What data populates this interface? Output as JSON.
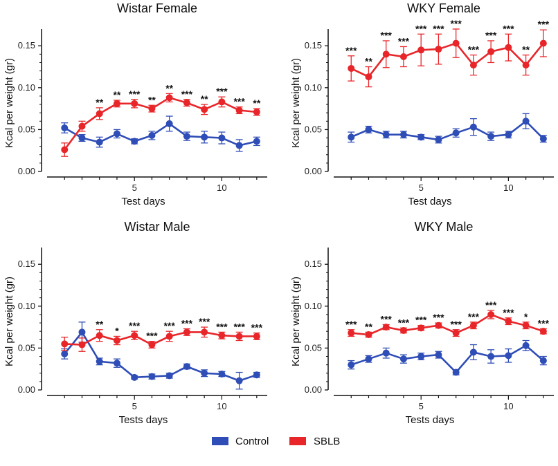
{
  "colors": {
    "control": "#2f4db6",
    "sblb": "#e8262a",
    "axis": "#111111"
  },
  "legend": [
    {
      "label": "Control",
      "color": "#2f4db6"
    },
    {
      "label": "SBLB",
      "color": "#e8262a"
    }
  ],
  "chart_data": [
    {
      "type": "line",
      "title": "Wistar Female",
      "xlabel": "Test days",
      "ylabel": "Kcal per weight (gr)",
      "xlim": [
        0,
        12.6
      ],
      "ylim": [
        0,
        0.17
      ],
      "xticks": [
        5,
        10
      ],
      "yticks": [
        "0.00",
        "0.05",
        "0.10",
        "0.15"
      ],
      "x": [
        1,
        2,
        3,
        4,
        5,
        6,
        7,
        8,
        9,
        10,
        11,
        12
      ],
      "series": [
        {
          "name": "Control",
          "values": [
            0.052,
            0.04,
            0.035,
            0.045,
            0.036,
            0.043,
            0.057,
            0.042,
            0.041,
            0.04,
            0.031,
            0.036
          ],
          "errors": [
            0.006,
            0.004,
            0.006,
            0.005,
            0.003,
            0.005,
            0.009,
            0.005,
            0.007,
            0.007,
            0.007,
            0.005
          ]
        },
        {
          "name": "SBLB",
          "values": [
            0.026,
            0.054,
            0.069,
            0.081,
            0.081,
            0.075,
            0.088,
            0.082,
            0.074,
            0.083,
            0.073,
            0.071
          ],
          "errors": [
            0.008,
            0.006,
            0.007,
            0.004,
            0.005,
            0.004,
            0.005,
            0.004,
            0.006,
            0.006,
            0.004,
            0.004
          ],
          "significance": [
            "",
            "",
            "**",
            "**",
            "***",
            "**",
            "**",
            "***",
            "**",
            "***",
            "***",
            "**"
          ]
        }
      ]
    },
    {
      "type": "line",
      "title": "WKY Female",
      "xlabel": "Test days",
      "ylabel": "Kcal per weight (gr)",
      "xlim": [
        0,
        12.6
      ],
      "ylim": [
        0,
        0.17
      ],
      "xticks": [
        5,
        10
      ],
      "yticks": [
        "0.00",
        "0.05",
        "0.10",
        "0.15"
      ],
      "x": [
        1,
        2,
        3,
        4,
        5,
        6,
        7,
        8,
        9,
        10,
        11,
        12
      ],
      "series": [
        {
          "name": "Control",
          "values": [
            0.041,
            0.05,
            0.044,
            0.044,
            0.041,
            0.038,
            0.046,
            0.053,
            0.042,
            0.044,
            0.06,
            0.039
          ],
          "errors": [
            0.006,
            0.004,
            0.004,
            0.004,
            0.003,
            0.004,
            0.005,
            0.01,
            0.005,
            0.004,
            0.009,
            0.004
          ]
        },
        {
          "name": "SBLB",
          "values": [
            0.123,
            0.113,
            0.14,
            0.137,
            0.145,
            0.146,
            0.153,
            0.127,
            0.143,
            0.148,
            0.127,
            0.153
          ],
          "errors": [
            0.015,
            0.012,
            0.016,
            0.012,
            0.019,
            0.018,
            0.017,
            0.012,
            0.013,
            0.016,
            0.012,
            0.016
          ],
          "significance": [
            "***",
            "**",
            "***",
            "***",
            "***",
            "***",
            "***",
            "***",
            "***",
            "***",
            "**",
            "***"
          ]
        }
      ]
    },
    {
      "type": "line",
      "title": "Wistar Male",
      "xlabel": "Tests days",
      "ylabel": "Kcal per weight (gr)",
      "xlim": [
        0,
        12.6
      ],
      "ylim": [
        0,
        0.17
      ],
      "xticks": [
        5,
        10
      ],
      "yticks": [
        "0.00",
        "0.05",
        "0.10",
        "0.15"
      ],
      "x": [
        1,
        2,
        3,
        4,
        5,
        6,
        7,
        8,
        9,
        10,
        11,
        12
      ],
      "series": [
        {
          "name": "Control",
          "values": [
            0.043,
            0.069,
            0.034,
            0.032,
            0.015,
            0.016,
            0.017,
            0.028,
            0.02,
            0.019,
            0.011,
            0.018
          ],
          "errors": [
            0.006,
            0.012,
            0.004,
            0.005,
            0.002,
            0.003,
            0.003,
            0.003,
            0.004,
            0.003,
            0.01,
            0.003
          ]
        },
        {
          "name": "SBLB",
          "values": [
            0.055,
            0.054,
            0.065,
            0.059,
            0.065,
            0.054,
            0.064,
            0.069,
            0.069,
            0.065,
            0.064,
            0.064
          ],
          "errors": [
            0.008,
            0.008,
            0.007,
            0.005,
            0.005,
            0.004,
            0.006,
            0.004,
            0.006,
            0.004,
            0.005,
            0.004
          ],
          "significance": [
            "",
            "",
            "**",
            "*",
            "***",
            "***",
            "***",
            "***",
            "***",
            "***",
            "***",
            "***"
          ]
        }
      ]
    },
    {
      "type": "line",
      "title": "WKY Male",
      "xlabel": "Tests days",
      "ylabel": "Kcal per weight (gr)",
      "xlim": [
        0,
        12.6
      ],
      "ylim": [
        0,
        0.17
      ],
      "xticks": [
        5,
        10
      ],
      "yticks": [
        "0.00",
        "0.05",
        "0.10",
        "0.15"
      ],
      "x": [
        1,
        2,
        3,
        4,
        5,
        6,
        7,
        8,
        9,
        10,
        11,
        12
      ],
      "series": [
        {
          "name": "Control",
          "values": [
            0.03,
            0.037,
            0.044,
            0.037,
            0.04,
            0.042,
            0.021,
            0.045,
            0.04,
            0.041,
            0.053,
            0.035
          ],
          "errors": [
            0.005,
            0.004,
            0.006,
            0.005,
            0.004,
            0.004,
            0.003,
            0.009,
            0.008,
            0.008,
            0.006,
            0.005
          ]
        },
        {
          "name": "SBLB",
          "values": [
            0.068,
            0.066,
            0.075,
            0.071,
            0.074,
            0.077,
            0.068,
            0.077,
            0.09,
            0.082,
            0.077,
            0.07
          ],
          "errors": [
            0.004,
            0.003,
            0.003,
            0.003,
            0.003,
            0.003,
            0.004,
            0.004,
            0.005,
            0.004,
            0.004,
            0.003
          ],
          "significance": [
            "***",
            "**",
            "***",
            "***",
            "***",
            "***",
            "***",
            "***",
            "***",
            "***",
            "*",
            "***"
          ]
        }
      ]
    }
  ]
}
